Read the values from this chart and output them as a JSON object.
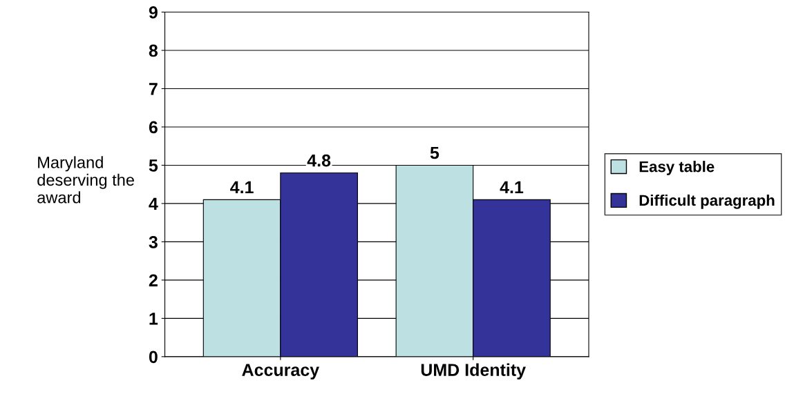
{
  "chart_data": {
    "type": "bar",
    "ylabel": "Maryland deserving the award",
    "categories": [
      "Accuracy",
      "UMD Identity"
    ],
    "series": [
      {
        "name": "Easy table",
        "color": "#bde0e3",
        "values": [
          4.1,
          5
        ]
      },
      {
        "name": "Difficult paragraph",
        "color": "#333399",
        "values": [
          4.8,
          4.1
        ]
      }
    ],
    "ylim": [
      0,
      9
    ],
    "yticks": [
      0,
      1,
      2,
      3,
      4,
      5,
      6,
      7,
      8,
      9
    ],
    "grid": "y",
    "legend": "right",
    "data_labels": true
  }
}
